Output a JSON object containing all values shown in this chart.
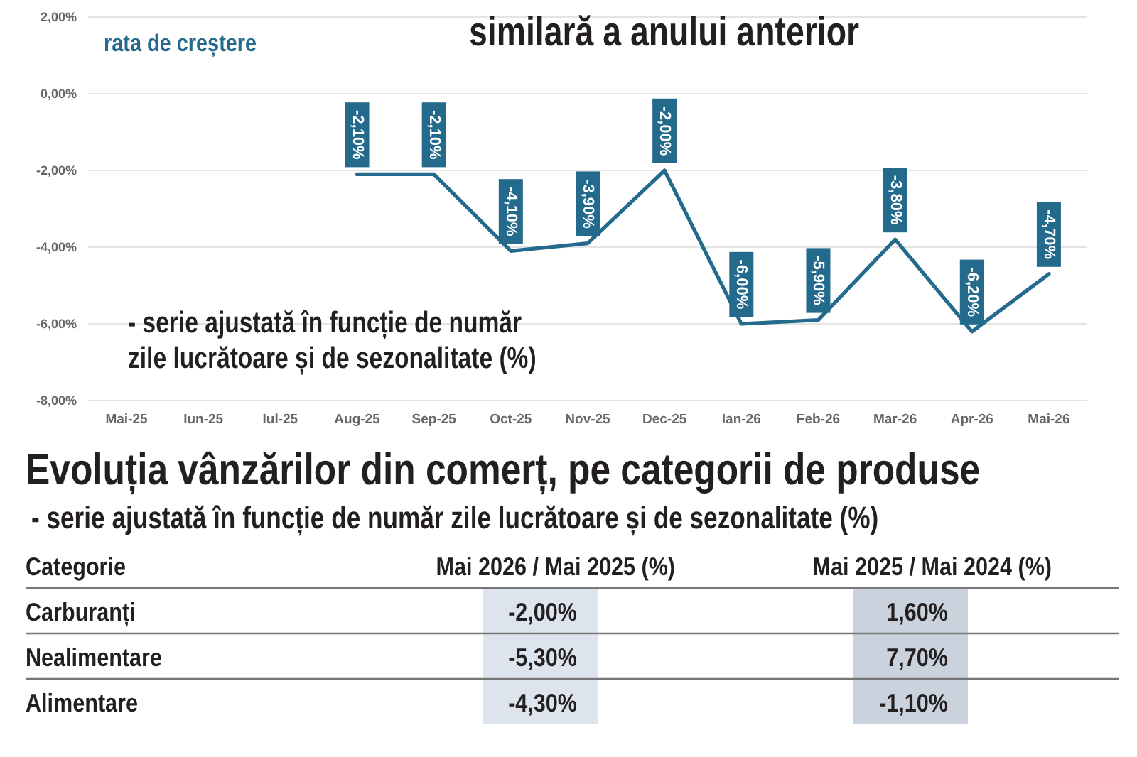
{
  "chart_data": [
    {
      "type": "line",
      "title": "similară a anului anterior",
      "categories": [
        "Mai-25",
        "Iun-25",
        "Iul-25",
        "Aug-25",
        "Sep-25",
        "Oct-25",
        "Nov-25",
        "Dec-25",
        "Ian-26",
        "Feb-26",
        "Mar-26",
        "Apr-26",
        "Mai-26"
      ],
      "series": [
        {
          "name": "rata de creștere",
          "color": "#236a8c",
          "values": [
            null,
            null,
            null,
            -2.1,
            -2.1,
            -4.1,
            -3.9,
            -2.0,
            -6.0,
            -5.9,
            -3.8,
            -6.2,
            -4.7
          ],
          "value_labels": [
            null,
            null,
            null,
            "-2,10%",
            "-2,10%",
            "-4,10%",
            "-3,90%",
            "-2,00%",
            "-6,00%",
            "-5,90%",
            "-3,80%",
            "-6,20%",
            "-4,70%"
          ]
        }
      ],
      "ylim": [
        -8,
        2
      ],
      "yticks": [
        {
          "value": -8,
          "label": "-8,00%"
        },
        {
          "value": -6,
          "label": "-6,00%"
        },
        {
          "value": -4,
          "label": "-4,00%"
        },
        {
          "value": -2,
          "label": "-2,00%"
        },
        {
          "value": 0,
          "label": "0,00%"
        },
        {
          "value": 2,
          "label": "2,00%"
        }
      ],
      "grid": "y",
      "legend": "top left",
      "annotations": [
        "- serie ajustată în funcție de număr zile lucrătoare și de sezonalitate (%)"
      ]
    },
    {
      "type": "other",
      "title": "Evoluția vânzărilor din comerț, pe categorii de produse",
      "subtitle": "- serie ajustată în funcție de număr zile lucrătoare și de sezonalitate (%)",
      "ylabel": "Categorie",
      "categories": [
        "Carburanți",
        "Nealimentare",
        "Alimentare"
      ],
      "series": [
        {
          "name": "Mai 2026 / Mai 2025 (%)",
          "color": "#dde4ed",
          "values": [
            -2.0,
            -5.3,
            -4.3
          ],
          "value_labels": [
            "-2,00%",
            "-5,30%",
            "-4,30%"
          ]
        },
        {
          "name": "Mai 2025 / Mai 2024 (%)",
          "color": "#c9d2dd",
          "values": [
            1.6,
            7.7,
            -1.1
          ],
          "value_labels": [
            "1,60%",
            "7,70%",
            "-1,10%"
          ]
        }
      ]
    }
  ]
}
